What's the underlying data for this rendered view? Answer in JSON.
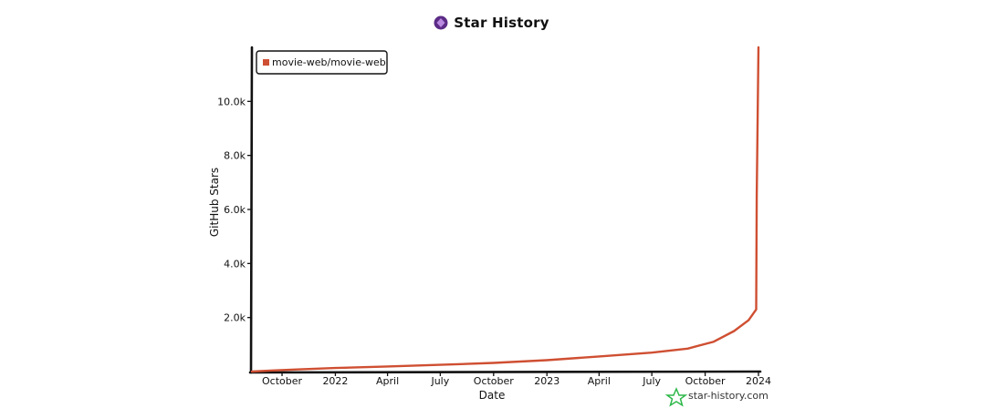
{
  "title": "Star History",
  "watermark": "star-history.com",
  "icons": {
    "logo": "star-history-logo-icon",
    "watermark": "star-outline-icon"
  },
  "colors": {
    "series": "#cf4f32",
    "logo": "#5b2b86",
    "watermark": "#2fb84a"
  },
  "chart_data": {
    "type": "line",
    "title": "Star History",
    "xlabel": "Date",
    "ylabel": "GitHub Stars",
    "xlim": [
      "2021-08-10",
      "2024-01-01"
    ],
    "ylim": [
      0,
      12000
    ],
    "x_ticks": [
      {
        "date": "2021-10-01",
        "label": "October"
      },
      {
        "date": "2022-01-01",
        "label": "2022"
      },
      {
        "date": "2022-04-01",
        "label": "April"
      },
      {
        "date": "2022-07-01",
        "label": "July"
      },
      {
        "date": "2022-10-01",
        "label": "October"
      },
      {
        "date": "2023-01-01",
        "label": "2023"
      },
      {
        "date": "2023-04-01",
        "label": "April"
      },
      {
        "date": "2023-07-01",
        "label": "July"
      },
      {
        "date": "2023-10-01",
        "label": "October"
      },
      {
        "date": "2024-01-01",
        "label": "2024"
      }
    ],
    "y_ticks": [
      {
        "value": 2000,
        "label": "2.0k"
      },
      {
        "value": 4000,
        "label": "4.0k"
      },
      {
        "value": 6000,
        "label": "6.0k"
      },
      {
        "value": 8000,
        "label": "8.0k"
      },
      {
        "value": 10000,
        "label": "10.0k"
      }
    ],
    "legend_position": "top-left",
    "grid": false,
    "series": [
      {
        "name": "movie-web/movie-web",
        "color": "#cf4f32",
        "points": [
          {
            "x": "2021-08-10",
            "y": 0
          },
          {
            "x": "2021-09-15",
            "y": 40
          },
          {
            "x": "2021-11-01",
            "y": 80
          },
          {
            "x": "2022-01-01",
            "y": 130
          },
          {
            "x": "2022-04-01",
            "y": 190
          },
          {
            "x": "2022-07-01",
            "y": 250
          },
          {
            "x": "2022-10-01",
            "y": 320
          },
          {
            "x": "2023-01-01",
            "y": 420
          },
          {
            "x": "2023-04-01",
            "y": 560
          },
          {
            "x": "2023-07-01",
            "y": 700
          },
          {
            "x": "2023-09-01",
            "y": 850
          },
          {
            "x": "2023-10-15",
            "y": 1100
          },
          {
            "x": "2023-11-20",
            "y": 1500
          },
          {
            "x": "2023-12-15",
            "y": 1900
          },
          {
            "x": "2023-12-28",
            "y": 2300
          },
          {
            "x": "2023-12-29",
            "y": 6500
          },
          {
            "x": "2024-01-01",
            "y": 12000
          }
        ]
      }
    ]
  }
}
